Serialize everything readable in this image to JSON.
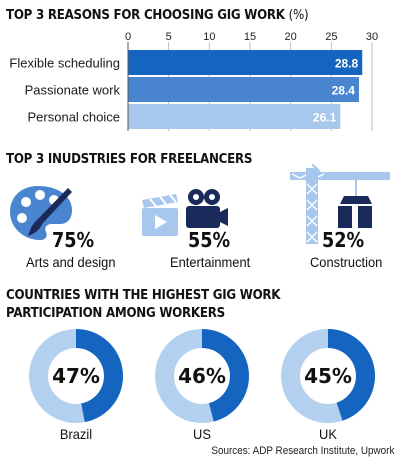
{
  "reasons": {
    "title": "TOP 3 REASONS FOR CHOOSING GIG WORK",
    "unit": "(%)"
  },
  "industries": {
    "title": "TOP 3 INUDSTRIES FOR FREELANCERS",
    "items": [
      {
        "pct": "75%",
        "label": "Arts and design",
        "icon": "palette-brush-icon"
      },
      {
        "pct": "55%",
        "label": "Entertainment",
        "icon": "film-camera-icon"
      },
      {
        "pct": "52%",
        "label": "Construction",
        "icon": "construction-crane-icon"
      }
    ]
  },
  "countries": {
    "title_line1": "COUNTRIES WITH THE HIGHEST GIG WORK",
    "title_line2": "PARTICIPATION AMONG WORKERS",
    "items": [
      {
        "pct": "47%",
        "label": "Brazil"
      },
      {
        "pct": "46%",
        "label": "US"
      },
      {
        "pct": "45%",
        "label": "UK"
      }
    ]
  },
  "sources": "Sources: ADP Research Institute, Upwork",
  "colors": {
    "dark_blue": "#1565c0",
    "mid_blue": "#4a86d0",
    "light_blue": "#a7c8ec",
    "donut_light": "#b3d0ee"
  },
  "chart_data": [
    {
      "type": "bar",
      "orientation": "horizontal",
      "title": "TOP 3 REASONS FOR CHOOSING GIG WORK (%)",
      "categories": [
        "Flexible scheduling",
        "Passionate work",
        "Personal choice"
      ],
      "values": [
        28.8,
        28.4,
        26.1
      ],
      "xlim": [
        0,
        30
      ],
      "ticks": [
        0,
        5,
        10,
        15,
        20,
        25,
        30
      ],
      "grid": true
    },
    {
      "type": "pie",
      "variant": "donut",
      "title": "COUNTRIES WITH THE HIGHEST GIG WORK PARTICIPATION AMONG WORKERS",
      "categories": [
        "Brazil",
        "US",
        "UK"
      ],
      "values": [
        47,
        46,
        45
      ]
    }
  ]
}
